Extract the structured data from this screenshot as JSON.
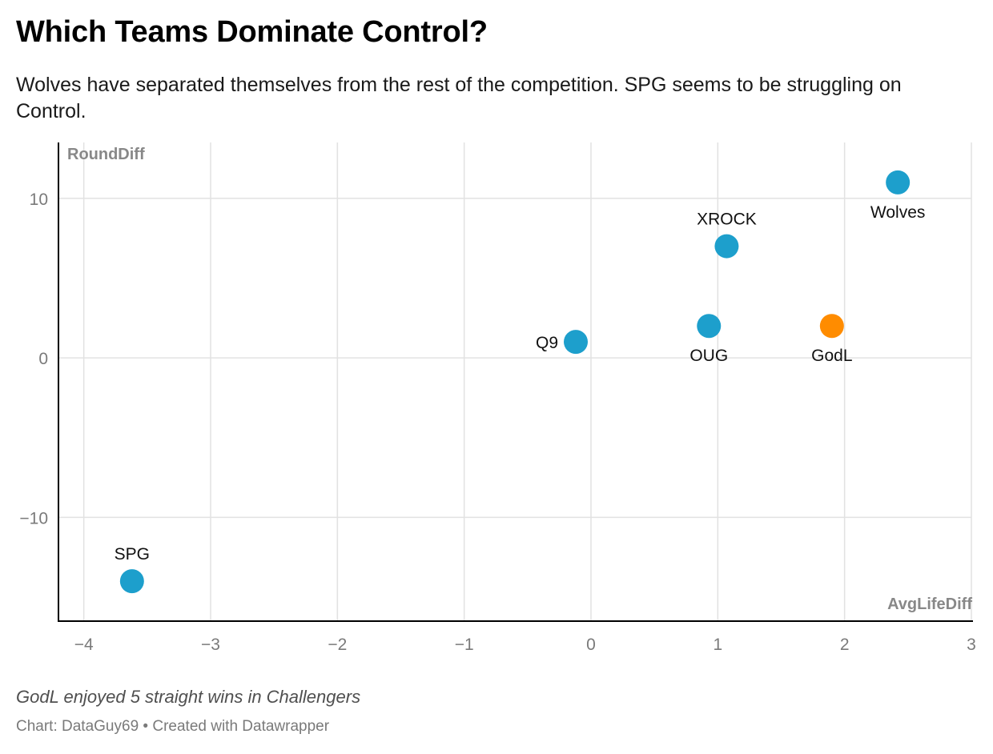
{
  "header": {
    "title": "Which Teams Dominate Control?",
    "subtitle": "Wolves have separated themselves from the rest of the competition. SPG seems to be struggling on Control."
  },
  "footer": {
    "note": "GodL enjoyed 5 straight wins in Challengers",
    "source": "Chart: DataGuy69",
    "separator": "•",
    "credit": "Created with Datawrapper"
  },
  "chart_data": {
    "type": "scatter",
    "xlabel": "AvgLifeDiff",
    "ylabel": "RoundDiff",
    "xlim": [
      -4.2,
      3
    ],
    "ylim": [
      -16.5,
      13.5
    ],
    "x_ticks": [
      -4,
      -3,
      -2,
      -1,
      0,
      1,
      2,
      3
    ],
    "x_tick_labels": [
      "−4",
      "−3",
      "−2",
      "−1",
      "0",
      "1",
      "2",
      "3"
    ],
    "y_ticks": [
      10,
      0,
      -10
    ],
    "y_tick_labels": [
      "10",
      "0",
      "−10"
    ],
    "grid": true,
    "colors": {
      "default": "#1d9fcc",
      "highlight": "#ff8c00",
      "grid": "#e2e2e2",
      "axis": "#000000",
      "tick_text": "#7a7a7a",
      "axis_title": "#888888"
    },
    "points": [
      {
        "label": "Wolves",
        "x": 2.42,
        "y": 11,
        "highlight": false,
        "label_pos": "below"
      },
      {
        "label": "XROCK",
        "x": 1.07,
        "y": 7,
        "highlight": false,
        "label_pos": "above"
      },
      {
        "label": "Q9",
        "x": -0.12,
        "y": 1,
        "highlight": false,
        "label_pos": "left"
      },
      {
        "label": "OUG",
        "x": 0.93,
        "y": 2,
        "highlight": false,
        "label_pos": "below"
      },
      {
        "label": "GodL",
        "x": 1.9,
        "y": 2,
        "highlight": true,
        "label_pos": "below"
      },
      {
        "label": "SPG",
        "x": -3.62,
        "y": -14,
        "highlight": false,
        "label_pos": "above"
      }
    ]
  }
}
